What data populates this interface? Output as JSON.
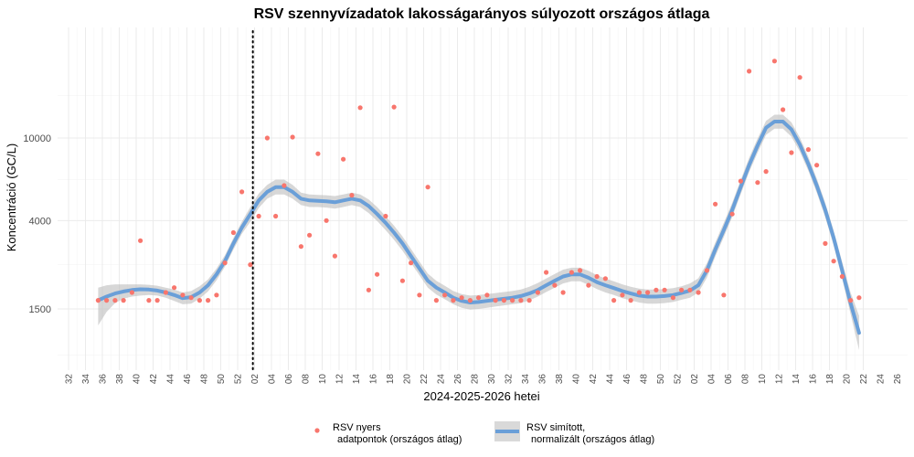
{
  "chart_data": {
    "type": "scatter",
    "title": "RSV szennyvízadatok lakosságarányos súlyozott országos átlaga",
    "xlabel": "2024-2025-2026 hetei",
    "ylabel": "Koncentráció (GC/L)",
    "y_scale": "log",
    "y_ticks": [
      1500,
      4000,
      10000
    ],
    "y_tick_labels": [
      "1500",
      "4000",
      "10000"
    ],
    "x_tick_labels": [
      "32",
      "34",
      "36",
      "38",
      "40",
      "42",
      "44",
      "46",
      "48",
      "50",
      "52",
      "02",
      "04",
      "06",
      "08",
      "10",
      "12",
      "14",
      "16",
      "18",
      "20",
      "22",
      "24",
      "26",
      "28",
      "30",
      "32",
      "34",
      "36",
      "38",
      "40",
      "42",
      "44",
      "46",
      "48",
      "50",
      "52",
      "02",
      "04",
      "06",
      "08",
      "10",
      "12",
      "14",
      "16",
      "18",
      "20",
      "22",
      "24",
      "26"
    ],
    "reference_line": {
      "type": "vertical",
      "style": "dotted",
      "x": 53.8
    },
    "grid": true,
    "legend_position": "bottom",
    "colors": {
      "points": "#f8766d",
      "smooth": "#6a9fd8",
      "band": "#bdbdbd"
    },
    "series": [
      {
        "name": "RSV nyers\nadatpontok (országos átlag)",
        "type": "scatter",
        "points": [
          [
            35.5,
            1650
          ],
          [
            36.5,
            1650
          ],
          [
            37.5,
            1650
          ],
          [
            38.5,
            1650
          ],
          [
            39.5,
            1800
          ],
          [
            40.5,
            3200
          ],
          [
            41.5,
            1650
          ],
          [
            42.5,
            1650
          ],
          [
            43.5,
            1800
          ],
          [
            44.5,
            1900
          ],
          [
            45.5,
            1750
          ],
          [
            46.5,
            1700
          ],
          [
            47.5,
            1650
          ],
          [
            48.5,
            1650
          ],
          [
            49.5,
            1750
          ],
          [
            50.5,
            2500
          ],
          [
            51.5,
            3500
          ],
          [
            52.5,
            5500
          ],
          [
            53.5,
            2450
          ],
          [
            54.5,
            4200
          ],
          [
            55.5,
            10000
          ],
          [
            56.5,
            4200
          ],
          [
            57.5,
            5900
          ],
          [
            58.5,
            10100
          ],
          [
            59.5,
            3000
          ],
          [
            60.5,
            3400
          ],
          [
            61.5,
            8400
          ],
          [
            62.5,
            4000
          ],
          [
            63.5,
            2700
          ],
          [
            64.5,
            7900
          ],
          [
            65.5,
            5300
          ],
          [
            66.5,
            14000
          ],
          [
            67.5,
            1850
          ],
          [
            68.5,
            2200
          ],
          [
            69.5,
            4200
          ],
          [
            70.5,
            14100
          ],
          [
            71.5,
            2050
          ],
          [
            72.5,
            2500
          ],
          [
            73.5,
            1750
          ],
          [
            74.5,
            5800
          ],
          [
            75.5,
            1650
          ],
          [
            76.5,
            1750
          ],
          [
            77.5,
            1650
          ],
          [
            78.5,
            1700
          ],
          [
            79.5,
            1650
          ],
          [
            80.5,
            1700
          ],
          [
            81.5,
            1750
          ],
          [
            82.5,
            1650
          ],
          [
            83.5,
            1650
          ],
          [
            84.5,
            1650
          ],
          [
            85.5,
            1650
          ],
          [
            86.5,
            1650
          ],
          [
            87.5,
            1800
          ],
          [
            88.5,
            2250
          ],
          [
            89.5,
            1950
          ],
          [
            90.5,
            1800
          ],
          [
            91.5,
            2250
          ],
          [
            92.5,
            2300
          ],
          [
            93.5,
            1950
          ],
          [
            94.5,
            2150
          ],
          [
            95.5,
            2100
          ],
          [
            96.5,
            1650
          ],
          [
            97.5,
            1750
          ],
          [
            98.5,
            1650
          ],
          [
            99.5,
            1800
          ],
          [
            100.5,
            1800
          ],
          [
            101.5,
            1850
          ],
          [
            102.5,
            1850
          ],
          [
            103.5,
            1700
          ],
          [
            104.5,
            1850
          ],
          [
            105.5,
            1850
          ],
          [
            106.5,
            1800
          ],
          [
            107.5,
            2300
          ],
          [
            108.5,
            4800
          ],
          [
            109.5,
            1750
          ],
          [
            110.5,
            4300
          ],
          [
            111.5,
            6200
          ],
          [
            112.5,
            21000
          ],
          [
            113.5,
            6100
          ],
          [
            114.5,
            6900
          ],
          [
            115.5,
            23500
          ],
          [
            116.5,
            13700
          ],
          [
            117.5,
            8500
          ],
          [
            118.5,
            19600
          ],
          [
            119.5,
            8800
          ],
          [
            120.5,
            7400
          ],
          [
            121.5,
            3100
          ],
          [
            122.5,
            2550
          ],
          [
            123.5,
            2150
          ],
          [
            124.5,
            1650
          ],
          [
            125.5,
            1700
          ]
        ]
      },
      {
        "name": "RSV simított,\nnormalizált (országos átlag)",
        "type": "line",
        "points": [
          [
            35.5,
            1650
          ],
          [
            36.5,
            1720
          ],
          [
            37.5,
            1780
          ],
          [
            38.5,
            1820
          ],
          [
            39.5,
            1850
          ],
          [
            40.5,
            1865
          ],
          [
            41.5,
            1860
          ],
          [
            42.5,
            1840
          ],
          [
            43.5,
            1800
          ],
          [
            44.5,
            1750
          ],
          [
            45.5,
            1690
          ],
          [
            46.5,
            1710
          ],
          [
            47.5,
            1800
          ],
          [
            48.5,
            1950
          ],
          [
            49.5,
            2200
          ],
          [
            50.5,
            2550
          ],
          [
            51.5,
            3100
          ],
          [
            52.5,
            3700
          ],
          [
            53.5,
            4300
          ],
          [
            54.5,
            5000
          ],
          [
            55.5,
            5500
          ],
          [
            56.5,
            5800
          ],
          [
            57.5,
            5800
          ],
          [
            58.5,
            5500
          ],
          [
            59.5,
            5100
          ],
          [
            60.5,
            5000
          ],
          [
            61.5,
            4980
          ],
          [
            62.5,
            4950
          ],
          [
            63.5,
            4900
          ],
          [
            64.5,
            5000
          ],
          [
            65.5,
            5100
          ],
          [
            66.5,
            5000
          ],
          [
            67.5,
            4700
          ],
          [
            68.5,
            4300
          ],
          [
            69.5,
            3900
          ],
          [
            70.5,
            3500
          ],
          [
            71.5,
            3100
          ],
          [
            72.5,
            2700
          ],
          [
            73.5,
            2350
          ],
          [
            74.5,
            2050
          ],
          [
            75.5,
            1900
          ],
          [
            76.5,
            1800
          ],
          [
            77.5,
            1700
          ],
          [
            78.5,
            1640
          ],
          [
            79.5,
            1610
          ],
          [
            80.5,
            1620
          ],
          [
            81.5,
            1640
          ],
          [
            82.5,
            1660
          ],
          [
            83.5,
            1680
          ],
          [
            84.5,
            1700
          ],
          [
            85.5,
            1730
          ],
          [
            86.5,
            1780
          ],
          [
            87.5,
            1850
          ],
          [
            88.5,
            1950
          ],
          [
            89.5,
            2050
          ],
          [
            90.5,
            2150
          ],
          [
            91.5,
            2200
          ],
          [
            92.5,
            2200
          ],
          [
            93.5,
            2120
          ],
          [
            94.5,
            2020
          ],
          [
            95.5,
            1950
          ],
          [
            96.5,
            1890
          ],
          [
            97.5,
            1830
          ],
          [
            98.5,
            1780
          ],
          [
            99.5,
            1740
          ],
          [
            100.5,
            1720
          ],
          [
            101.5,
            1720
          ],
          [
            102.5,
            1730
          ],
          [
            103.5,
            1750
          ],
          [
            104.5,
            1790
          ],
          [
            105.5,
            1840
          ],
          [
            106.5,
            1950
          ],
          [
            107.5,
            2300
          ],
          [
            108.5,
            2900
          ],
          [
            109.5,
            3600
          ],
          [
            110.5,
            4500
          ],
          [
            111.5,
            5800
          ],
          [
            112.5,
            7400
          ],
          [
            113.5,
            9200
          ],
          [
            114.5,
            11200
          ],
          [
            115.5,
            12000
          ],
          [
            116.5,
            12000
          ],
          [
            117.5,
            11000
          ],
          [
            118.5,
            9300
          ],
          [
            119.5,
            7500
          ],
          [
            120.5,
            5900
          ],
          [
            121.5,
            4500
          ],
          [
            122.5,
            3300
          ],
          [
            123.5,
            2300
          ],
          [
            124.5,
            1600
          ],
          [
            125.5,
            1150
          ]
        ],
        "band": [
          [
            35.5,
            1250,
            1900
          ],
          [
            36.5,
            1450,
            1950
          ],
          [
            37.5,
            1600,
            1970
          ],
          [
            38.5,
            1680,
            1970
          ],
          [
            39.5,
            1720,
            1970
          ],
          [
            40.5,
            1740,
            1970
          ],
          [
            41.5,
            1750,
            1960
          ],
          [
            42.5,
            1740,
            1940
          ],
          [
            43.5,
            1700,
            1900
          ],
          [
            44.5,
            1640,
            1860
          ],
          [
            45.5,
            1580,
            1800
          ],
          [
            46.5,
            1590,
            1830
          ],
          [
            47.5,
            1680,
            1930
          ],
          [
            48.5,
            1820,
            2080
          ],
          [
            49.5,
            2060,
            2350
          ],
          [
            50.5,
            2400,
            2720
          ],
          [
            51.5,
            2900,
            3300
          ],
          [
            52.5,
            3450,
            3950
          ],
          [
            53.5,
            3950,
            4650
          ],
          [
            54.5,
            4600,
            5400
          ],
          [
            55.5,
            5100,
            5950
          ],
          [
            56.5,
            5350,
            6300
          ],
          [
            57.5,
            5350,
            6300
          ],
          [
            58.5,
            5100,
            5950
          ],
          [
            59.5,
            4750,
            5450
          ],
          [
            60.5,
            4650,
            5350
          ],
          [
            61.5,
            4650,
            5320
          ],
          [
            62.5,
            4620,
            5300
          ],
          [
            63.5,
            4570,
            5250
          ],
          [
            64.5,
            4650,
            5350
          ],
          [
            65.5,
            4750,
            5450
          ],
          [
            66.5,
            4650,
            5350
          ],
          [
            67.5,
            4350,
            5050
          ],
          [
            68.5,
            3980,
            4650
          ],
          [
            69.5,
            3600,
            4200
          ],
          [
            70.5,
            3230,
            3780
          ],
          [
            71.5,
            2860,
            3350
          ],
          [
            72.5,
            2500,
            2920
          ],
          [
            73.5,
            2180,
            2540
          ],
          [
            74.5,
            1900,
            2220
          ],
          [
            75.5,
            1760,
            2050
          ],
          [
            76.5,
            1670,
            1940
          ],
          [
            77.5,
            1580,
            1830
          ],
          [
            78.5,
            1520,
            1770
          ],
          [
            79.5,
            1490,
            1740
          ],
          [
            80.5,
            1500,
            1750
          ],
          [
            81.5,
            1520,
            1770
          ],
          [
            82.5,
            1540,
            1790
          ],
          [
            83.5,
            1560,
            1810
          ],
          [
            84.5,
            1580,
            1830
          ],
          [
            85.5,
            1600,
            1860
          ],
          [
            86.5,
            1650,
            1920
          ],
          [
            87.5,
            1720,
            2000
          ],
          [
            88.5,
            1810,
            2100
          ],
          [
            89.5,
            1900,
            2210
          ],
          [
            90.5,
            1990,
            2320
          ],
          [
            91.5,
            2040,
            2370
          ],
          [
            92.5,
            2040,
            2370
          ],
          [
            93.5,
            1960,
            2290
          ],
          [
            94.5,
            1870,
            2180
          ],
          [
            95.5,
            1800,
            2100
          ],
          [
            96.5,
            1750,
            2040
          ],
          [
            97.5,
            1690,
            1970
          ],
          [
            98.5,
            1650,
            1920
          ],
          [
            99.5,
            1610,
            1880
          ],
          [
            100.5,
            1590,
            1860
          ],
          [
            101.5,
            1590,
            1860
          ],
          [
            102.5,
            1600,
            1870
          ],
          [
            103.5,
            1620,
            1890
          ],
          [
            104.5,
            1660,
            1930
          ],
          [
            105.5,
            1700,
            1990
          ],
          [
            106.5,
            1800,
            2110
          ],
          [
            107.5,
            2120,
            2490
          ],
          [
            108.5,
            2680,
            3140
          ],
          [
            109.5,
            3330,
            3900
          ],
          [
            110.5,
            4160,
            4870
          ],
          [
            111.5,
            5360,
            6280
          ],
          [
            112.5,
            6850,
            8020
          ],
          [
            113.5,
            8500,
            9950
          ],
          [
            114.5,
            10350,
            12100
          ],
          [
            115.5,
            11100,
            12950
          ],
          [
            116.5,
            11100,
            12950
          ],
          [
            117.5,
            10150,
            11900
          ],
          [
            118.5,
            8600,
            10050
          ],
          [
            119.5,
            6950,
            8100
          ],
          [
            120.5,
            5450,
            6380
          ],
          [
            121.5,
            4150,
            4870
          ],
          [
            122.5,
            3030,
            3580
          ],
          [
            123.5,
            2090,
            2530
          ],
          [
            124.5,
            1420,
            1800
          ],
          [
            125.5,
            950,
            1390
          ]
        ]
      }
    ]
  }
}
